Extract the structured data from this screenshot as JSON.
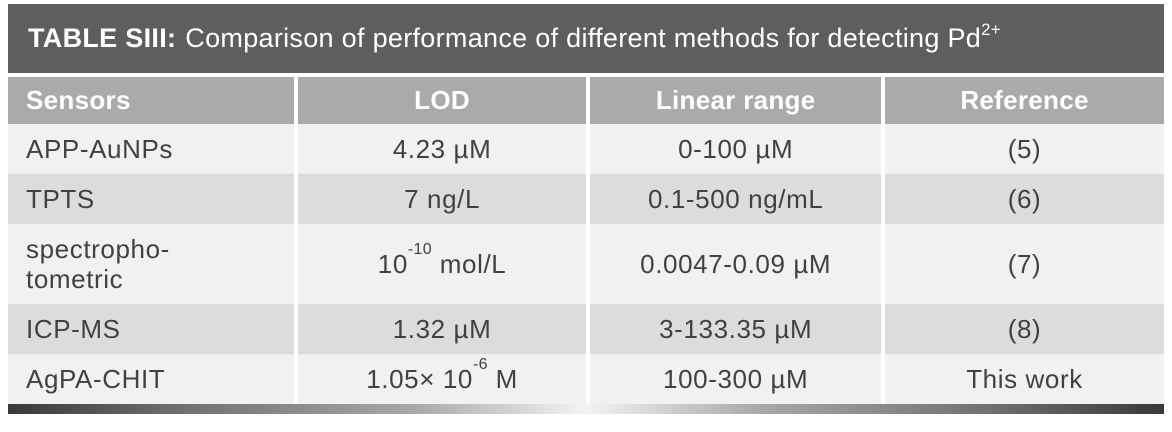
{
  "title": {
    "bold": "TABLE SIII:",
    "regular": "Comparison of performance of different methods for detecting Pd",
    "superscript": "2+"
  },
  "table": {
    "columns": [
      "Sensors",
      "LOD",
      "Linear range",
      "Reference"
    ],
    "rows": [
      {
        "cells": [
          [
            {
              "t": "APP-AuNPs"
            }
          ],
          [
            {
              "t": "4.23 µM"
            }
          ],
          [
            {
              "t": "0-100 µM"
            }
          ],
          [
            {
              "t": "(5)"
            }
          ]
        ]
      },
      {
        "cells": [
          [
            {
              "t": "TPTS"
            }
          ],
          [
            {
              "t": "7 ng/L"
            }
          ],
          [
            {
              "t": "0.1-500 ng/mL"
            }
          ],
          [
            {
              "t": "(6)"
            }
          ]
        ]
      },
      {
        "cells": [
          [
            {
              "t": "spectropho-"
            },
            {
              "br": true
            },
            {
              "t": "tometric"
            }
          ],
          [
            {
              "t": "10"
            },
            {
              "sup": "-10"
            },
            {
              "t": " mol/L"
            }
          ],
          [
            {
              "t": "0.0047-0.09 µM"
            }
          ],
          [
            {
              "t": "(7)"
            }
          ]
        ]
      },
      {
        "cells": [
          [
            {
              "t": "ICP-MS"
            }
          ],
          [
            {
              "t": "1.32 µM"
            }
          ],
          [
            {
              "t": "3-133.35 µM"
            }
          ],
          [
            {
              "t": "(8)"
            }
          ]
        ]
      },
      {
        "cells": [
          [
            {
              "t": "AgPA-CHIT"
            }
          ],
          [
            {
              "t": "1.05× 10"
            },
            {
              "sup": "-6"
            },
            {
              "t": " M"
            }
          ],
          [
            {
              "t": "100-300 µM"
            }
          ],
          [
            {
              "t": "This work"
            }
          ]
        ]
      }
    ]
  },
  "colors": {
    "title_bar_bg": "#5d5e60",
    "header_bg": "#a8aaac",
    "row_light_bg": "#f0f1f1",
    "row_dark_bg": "#dbdcde",
    "header_text": "#ffffff",
    "body_text": "#3f4142",
    "separator": "#ffffff"
  }
}
